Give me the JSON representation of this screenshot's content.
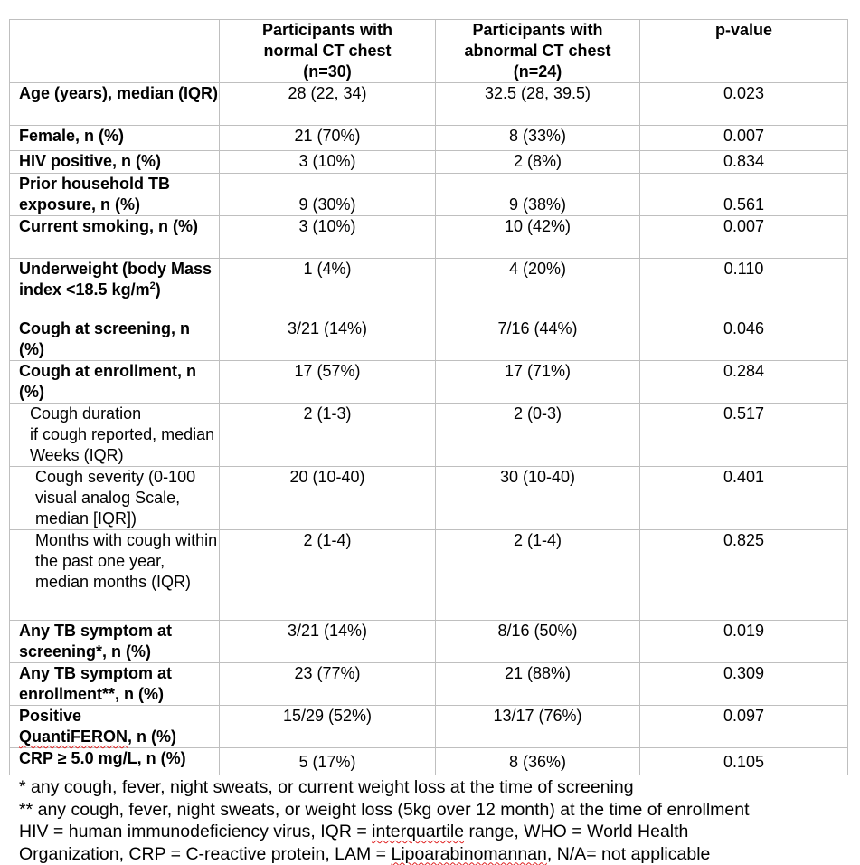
{
  "table": {
    "headers": [
      "",
      "Participants with normal CT chest (n=30)",
      "Participants with abnormal CT chest (n=24)",
      "p-value"
    ],
    "header_lines": {
      "normal": [
        "Participants with",
        "normal CT chest",
        "(n=30)"
      ],
      "abnormal": [
        "Participants with",
        "abnormal CT chest",
        "(n=24)"
      ],
      "p": "p-value"
    },
    "rows": [
      {
        "label": "Age (years), median (IQR)",
        "normal": "28 (22, 34)",
        "abnormal": "32.5 (28, 39.5)",
        "p": "0.023"
      },
      {
        "label": "Female, n (%)",
        "normal": "21 (70%)",
        "abnormal": "8 (33%)",
        "p": "0.007"
      },
      {
        "label": "HIV positive, n (%)",
        "normal": "3 (10%)",
        "abnormal": "2 (8%)",
        "p": "0.834"
      },
      {
        "label": "Prior household TB exposure, n (%)",
        "normal": "9 (30%)",
        "abnormal": "9 (38%)",
        "p": "0.561"
      },
      {
        "label": "Current smoking, n (%)",
        "normal": "3 (10%)",
        "abnormal": "10 (42%)",
        "p": "0.007"
      },
      {
        "label": "Underweight (body Mass index <18.5 kg/m",
        "label_sup": "2",
        "label_end": ")",
        "normal": "1 (4%)",
        "abnormal": "4 (20%)",
        "p": "0.110"
      },
      {
        "label": "Cough at screening, n (%)",
        "normal": "3/21 (14%)",
        "abnormal": "7/16 (44%)",
        "p": "0.046"
      },
      {
        "label": "Cough at enrollment, n (%)",
        "normal": "17 (57%)",
        "abnormal": "17 (71%)",
        "p": "0.284"
      },
      {
        "label": "Cough duration",
        "label2": "if cough reported, median Weeks (IQR)",
        "normal": "2 (1-3)",
        "abnormal": "2 (0-3)",
        "p": "0.517"
      },
      {
        "label": "Cough severity (0-100 visual analog Scale, median [IQR])",
        "normal": "20 (10-40)",
        "abnormal": "30 (10-40)",
        "p": "0.401"
      },
      {
        "label": "Months with cough within the past one year, median months (IQR)",
        "normal": "2 (1-4)",
        "abnormal": "2 (1-4)",
        "p": "0.825"
      },
      {
        "label": "Any TB symptom at screening*, n (%)",
        "normal": "3/21 (14%)",
        "abnormal": "8/16 (50%)",
        "p": "0.019"
      },
      {
        "label": "Any TB symptom at enrollment**, n (%)",
        "normal": "23 (77%)",
        "abnormal": "21 (88%)",
        "p": "0.309"
      },
      {
        "label": "Positive",
        "label2": "QuantiFERON",
        "label3": ", n (%)",
        "normal": "15/29 (52%)",
        "abnormal": "13/17 (76%)",
        "p": "0.097"
      },
      {
        "label": "CRP ≥ 5.0 mg/L, n (%)",
        "normal": "5 (17%)",
        "abnormal": "8 (36%)",
        "p": "0.105"
      }
    ]
  },
  "footnotes": {
    "line1": "* any cough, fever, night sweats, or current weight loss at the time of screening",
    "line2": "** any cough, fever, night sweats, or weight loss (5kg over 12 month) at the time of enrollment",
    "line3a": "HIV = human immunodeficiency virus, IQR = ",
    "line3b": "interquartile",
    "line3c": " range, WHO = World Health",
    "line4a": "Organization, CRP = C-reactive protein, LAM = ",
    "line4b": "Lipoarabinomannan",
    "line4c": ", N/A= not applicable"
  },
  "colors": {
    "border": "#bfbfbf",
    "spellcheck": "#e02020"
  }
}
